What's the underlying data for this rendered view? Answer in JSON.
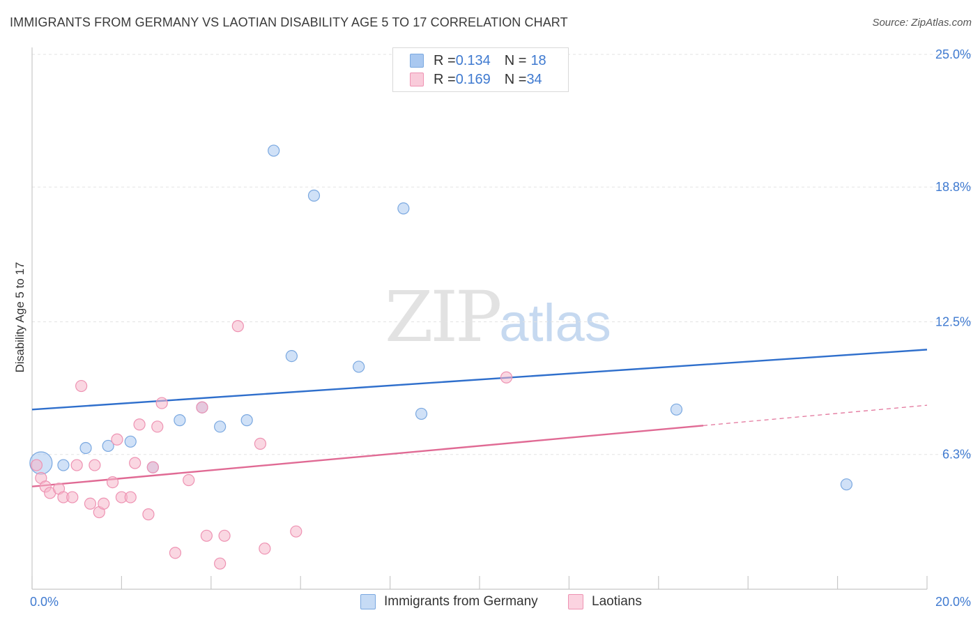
{
  "header": {
    "title": "IMMIGRANTS FROM GERMANY VS LAOTIAN DISABILITY AGE 5 TO 17 CORRELATION CHART",
    "source": "Source: ZipAtlas.com"
  },
  "watermark": {
    "zip": "ZIP",
    "atlas": "atlas"
  },
  "legend": {
    "rows": [
      {
        "r_label": "R = ",
        "r_value": "0.134",
        "n_label": "N = ",
        "n_value": "18",
        "color": "#a9c8f0"
      },
      {
        "r_label": "R = ",
        "r_value": "0.169",
        "n_label": "N = ",
        "n_value": "34",
        "color": "#f5b6ca"
      }
    ]
  },
  "chart_data": {
    "type": "scatter",
    "ylabel": "Disability Age 5 to 17",
    "xlabel": "",
    "xlim": [
      0,
      20
    ],
    "ylim": [
      0,
      25
    ],
    "x_tick_labels": {
      "min": "0.0%",
      "max": "20.0%"
    },
    "y_ticks": [
      {
        "value": 25.0,
        "label": "25.0%"
      },
      {
        "value": 18.8,
        "label": "18.8%"
      },
      {
        "value": 12.5,
        "label": "12.5%"
      },
      {
        "value": 6.3,
        "label": "6.3%"
      }
    ],
    "grid": "horizontal dashed",
    "legend_position": "top-center",
    "series": [
      {
        "name": "Immigrants from Germany",
        "color": "#7aa8e0",
        "fill": "#a9c8f0",
        "line_color": "#2f6fcc",
        "trend": {
          "x0": 0.0,
          "y0": 8.4,
          "x1": 20.0,
          "y1": 11.2,
          "solid_to": 20.0
        },
        "points": [
          {
            "x": 0.2,
            "y": 5.9,
            "big": true
          },
          {
            "x": 0.7,
            "y": 5.8
          },
          {
            "x": 1.2,
            "y": 6.6
          },
          {
            "x": 1.7,
            "y": 6.7
          },
          {
            "x": 2.2,
            "y": 6.9
          },
          {
            "x": 2.7,
            "y": 5.7
          },
          {
            "x": 3.3,
            "y": 7.9
          },
          {
            "x": 3.8,
            "y": 8.5
          },
          {
            "x": 4.2,
            "y": 7.6
          },
          {
            "x": 4.8,
            "y": 7.9
          },
          {
            "x": 5.4,
            "y": 20.5
          },
          {
            "x": 5.8,
            "y": 10.9
          },
          {
            "x": 6.3,
            "y": 18.4
          },
          {
            "x": 7.3,
            "y": 10.4
          },
          {
            "x": 8.3,
            "y": 17.8
          },
          {
            "x": 8.7,
            "y": 8.2
          },
          {
            "x": 14.4,
            "y": 8.4
          },
          {
            "x": 18.2,
            "y": 4.9
          }
        ]
      },
      {
        "name": "Laotians",
        "color": "#ee92b2",
        "fill": "#f5b6ca",
        "line_color": "#e06a94",
        "trend": {
          "x0": 0.0,
          "y0": 4.8,
          "x1": 20.0,
          "y1": 8.6,
          "solid_to": 15.0
        },
        "points": [
          {
            "x": 0.1,
            "y": 5.8
          },
          {
            "x": 0.2,
            "y": 5.2
          },
          {
            "x": 0.3,
            "y": 4.8
          },
          {
            "x": 0.4,
            "y": 4.5
          },
          {
            "x": 0.6,
            "y": 4.7
          },
          {
            "x": 0.7,
            "y": 4.3
          },
          {
            "x": 0.9,
            "y": 4.3
          },
          {
            "x": 1.0,
            "y": 5.8
          },
          {
            "x": 1.1,
            "y": 9.5
          },
          {
            "x": 1.3,
            "y": 4.0
          },
          {
            "x": 1.4,
            "y": 5.8
          },
          {
            "x": 1.5,
            "y": 3.6
          },
          {
            "x": 1.6,
            "y": 4.0
          },
          {
            "x": 1.8,
            "y": 5.0
          },
          {
            "x": 1.9,
            "y": 7.0
          },
          {
            "x": 2.0,
            "y": 4.3
          },
          {
            "x": 2.2,
            "y": 4.3
          },
          {
            "x": 2.3,
            "y": 5.9
          },
          {
            "x": 2.4,
            "y": 7.7
          },
          {
            "x": 2.6,
            "y": 3.5
          },
          {
            "x": 2.7,
            "y": 5.7
          },
          {
            "x": 2.8,
            "y": 7.6
          },
          {
            "x": 2.9,
            "y": 8.7
          },
          {
            "x": 3.2,
            "y": 1.7
          },
          {
            "x": 3.5,
            "y": 5.1
          },
          {
            "x": 3.8,
            "y": 8.5
          },
          {
            "x": 3.9,
            "y": 2.5
          },
          {
            "x": 4.2,
            "y": 1.2
          },
          {
            "x": 4.3,
            "y": 2.5
          },
          {
            "x": 4.6,
            "y": 12.3
          },
          {
            "x": 5.1,
            "y": 6.8
          },
          {
            "x": 5.2,
            "y": 1.9
          },
          {
            "x": 5.9,
            "y": 2.7
          },
          {
            "x": 10.6,
            "y": 9.9
          }
        ]
      }
    ]
  }
}
